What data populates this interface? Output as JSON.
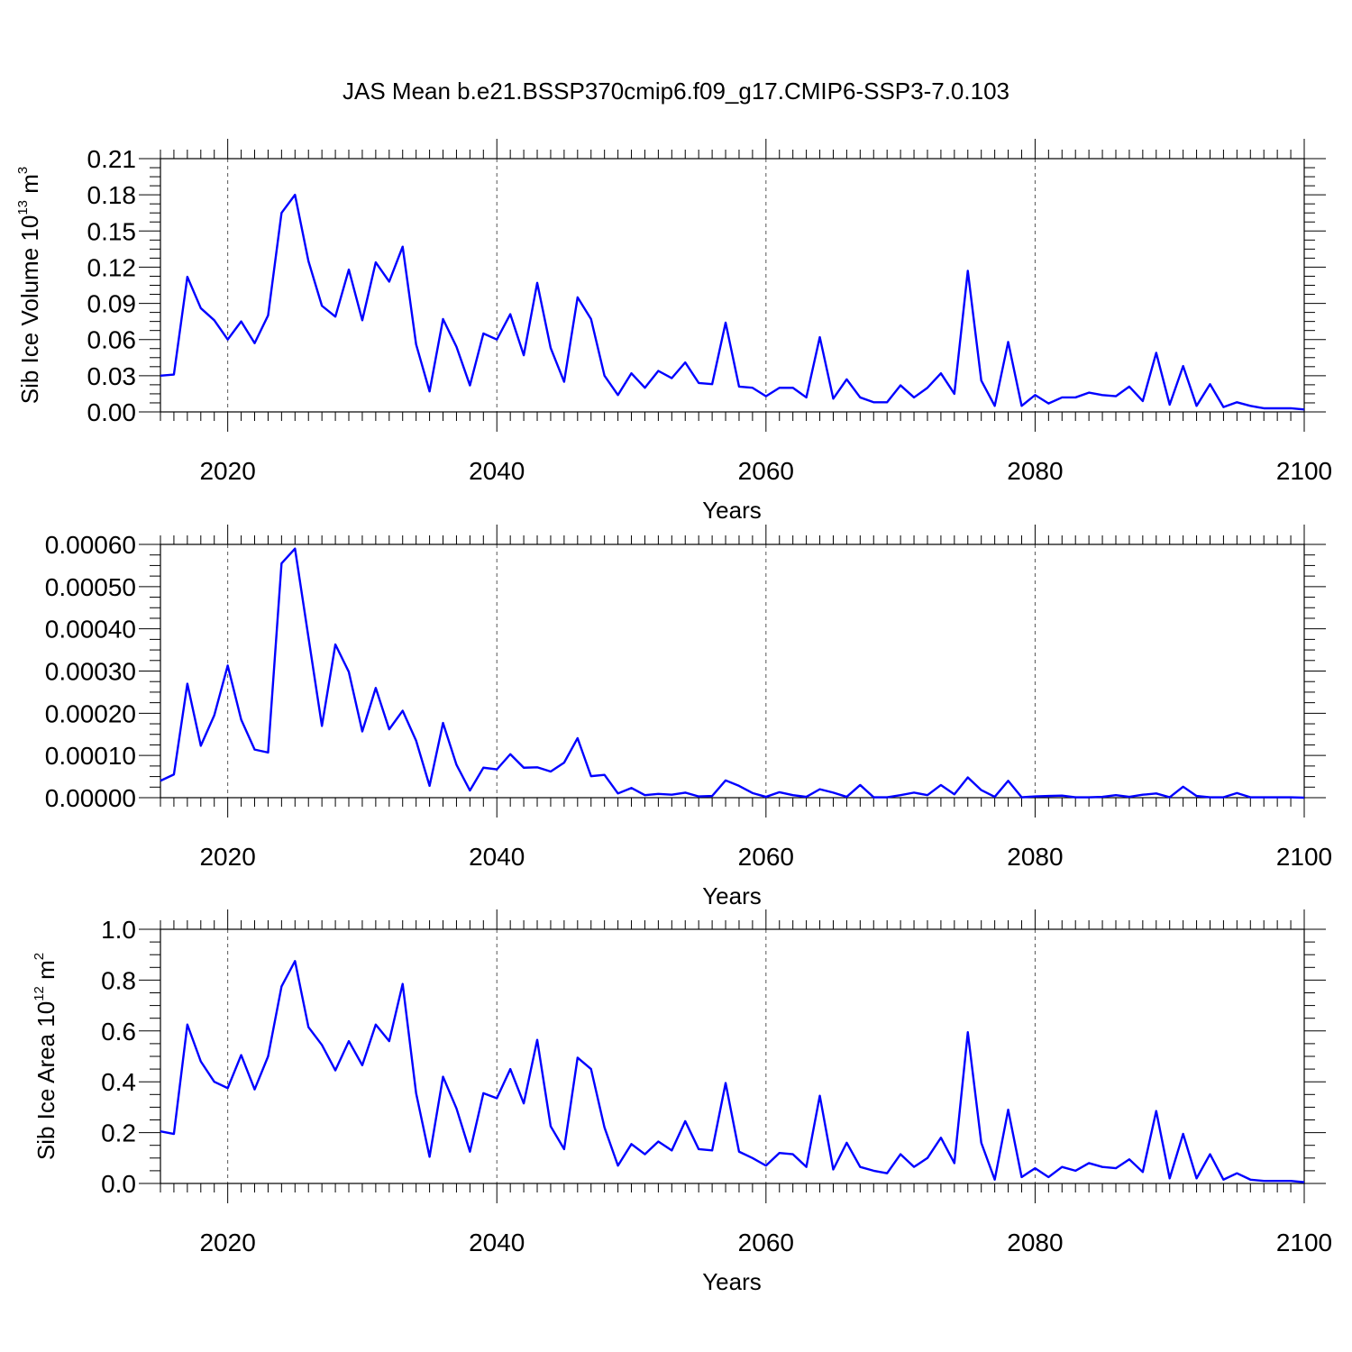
{
  "title": "JAS Mean b.e21.BSSP370cmip6.f09_g17.CMIP6-SSP3-7.0.103",
  "colors": {
    "line": "#0000ff",
    "axis": "#000000",
    "grid": "#555555"
  },
  "chart_data": [
    {
      "type": "line",
      "ylabel_main": "Sib Ice Volume 10",
      "ylabel_exp": "13",
      "ylabel_unit": " m",
      "ylabel_unit_exp": "3",
      "xlabel": "Years",
      "xlim": [
        2015,
        2100
      ],
      "ylim": [
        0,
        0.21
      ],
      "yticks": [
        0,
        0.03,
        0.06,
        0.09,
        0.12,
        0.15,
        0.18,
        0.21
      ],
      "ytick_labels": [
        "0.00",
        "0.03",
        "0.06",
        "0.09",
        "0.12",
        "0.15",
        "0.18",
        "0.21"
      ],
      "xticks": [
        2020,
        2040,
        2060,
        2080,
        2100
      ],
      "xtick_labels": [
        "2020",
        "2040",
        "2060",
        "2080",
        "2100"
      ],
      "x_start": 2015,
      "values": [
        0.03,
        0.031,
        0.112,
        0.086,
        0.076,
        0.06,
        0.075,
        0.057,
        0.08,
        0.165,
        0.18,
        0.125,
        0.088,
        0.079,
        0.118,
        0.076,
        0.124,
        0.108,
        0.137,
        0.056,
        0.017,
        0.077,
        0.054,
        0.022,
        0.065,
        0.06,
        0.081,
        0.047,
        0.107,
        0.053,
        0.025,
        0.095,
        0.077,
        0.03,
        0.014,
        0.032,
        0.02,
        0.034,
        0.028,
        0.041,
        0.024,
        0.023,
        0.074,
        0.021,
        0.02,
        0.013,
        0.02,
        0.02,
        0.012,
        0.062,
        0.011,
        0.027,
        0.012,
        0.008,
        0.008,
        0.022,
        0.012,
        0.02,
        0.032,
        0.015,
        0.117,
        0.026,
        0.005,
        0.058,
        0.005,
        0.014,
        0.007,
        0.012,
        0.012,
        0.016,
        0.014,
        0.013,
        0.021,
        0.009,
        0.049,
        0.006,
        0.038,
        0.005,
        0.023,
        0.004,
        0.008,
        0.005,
        0.003,
        0.003,
        0.003,
        0.002
      ]
    },
    {
      "type": "line",
      "ylabel_main": "",
      "xlabel": "Years",
      "xlim": [
        2015,
        2100
      ],
      "ylim": [
        0,
        0.0006
      ],
      "yticks": [
        0,
        0.0001,
        0.0002,
        0.0003,
        0.0004,
        0.0005,
        0.0006
      ],
      "ytick_labels": [
        "0.00000",
        "0.00010",
        "0.00020",
        "0.00030",
        "0.00040",
        "0.00050",
        "0.00060"
      ],
      "xticks": [
        2020,
        2040,
        2060,
        2080,
        2100
      ],
      "xtick_labels": [
        "2020",
        "2040",
        "2060",
        "2080",
        "2100"
      ],
      "x_start": 2015,
      "values": [
        4e-05,
        5.5e-05,
        0.00027,
        0.000123,
        0.000195,
        0.000313,
        0.000185,
        0.000114,
        0.000107,
        0.000555,
        0.00059,
        0.00038,
        0.00017,
        0.000363,
        0.000298,
        0.000157,
        0.00026,
        0.000162,
        0.000206,
        0.000135,
        2.8e-05,
        0.000177,
        7.8e-05,
        1.7e-05,
        7.1e-05,
        6.7e-05,
        0.000103,
        7.1e-05,
        7.2e-05,
        6.2e-05,
        8.3e-05,
        0.000141,
        5.1e-05,
        5.4e-05,
        1e-05,
        2.3e-05,
        6e-06,
        9e-06,
        7e-06,
        1.2e-05,
        3e-06,
        4e-06,
        4.1e-05,
        2.8e-05,
        1.1e-05,
        2e-06,
        1.3e-05,
        6e-06,
        2e-06,
        2e-05,
        1.2e-05,
        2e-06,
        3e-05,
        1e-06,
        1e-06,
        6e-06,
        1.2e-05,
        6e-06,
        3e-05,
        8e-06,
        4.8e-05,
        1.8e-05,
        2e-06,
        4e-05,
        1e-06,
        3e-06,
        4e-06,
        5e-06,
        1e-06,
        1e-06,
        2e-06,
        6e-06,
        2e-06,
        7e-06,
        1e-05,
        1e-06,
        2.6e-05,
        4e-06,
        1e-06,
        1e-06,
        1.1e-05,
        1e-06,
        1e-06,
        1e-06,
        1e-06,
        0.0
      ]
    },
    {
      "type": "line",
      "ylabel_main": "Sib Ice Area 10",
      "ylabel_exp": "12",
      "ylabel_unit": " m",
      "ylabel_unit_exp": "2",
      "xlabel": "Years",
      "xlim": [
        2015,
        2100
      ],
      "ylim": [
        0,
        1.0
      ],
      "yticks": [
        0,
        0.2,
        0.4,
        0.6,
        0.8,
        1.0
      ],
      "ytick_labels": [
        "0.0",
        "0.2",
        "0.4",
        "0.6",
        "0.8",
        "1.0"
      ],
      "xticks": [
        2020,
        2040,
        2060,
        2080,
        2100
      ],
      "xtick_labels": [
        "2020",
        "2040",
        "2060",
        "2080",
        "2100"
      ],
      "x_start": 2015,
      "values": [
        0.205,
        0.195,
        0.625,
        0.48,
        0.4,
        0.375,
        0.505,
        0.37,
        0.5,
        0.775,
        0.875,
        0.615,
        0.545,
        0.445,
        0.56,
        0.465,
        0.625,
        0.56,
        0.785,
        0.355,
        0.105,
        0.42,
        0.295,
        0.125,
        0.355,
        0.335,
        0.45,
        0.315,
        0.565,
        0.225,
        0.135,
        0.495,
        0.45,
        0.22,
        0.07,
        0.155,
        0.115,
        0.165,
        0.13,
        0.245,
        0.135,
        0.13,
        0.395,
        0.125,
        0.1,
        0.07,
        0.12,
        0.115,
        0.065,
        0.345,
        0.055,
        0.16,
        0.065,
        0.05,
        0.04,
        0.115,
        0.065,
        0.1,
        0.18,
        0.08,
        0.595,
        0.16,
        0.015,
        0.29,
        0.025,
        0.06,
        0.025,
        0.065,
        0.05,
        0.08,
        0.065,
        0.06,
        0.095,
        0.045,
        0.285,
        0.02,
        0.195,
        0.02,
        0.115,
        0.015,
        0.04,
        0.015,
        0.01,
        0.01,
        0.01,
        0.005
      ]
    }
  ]
}
